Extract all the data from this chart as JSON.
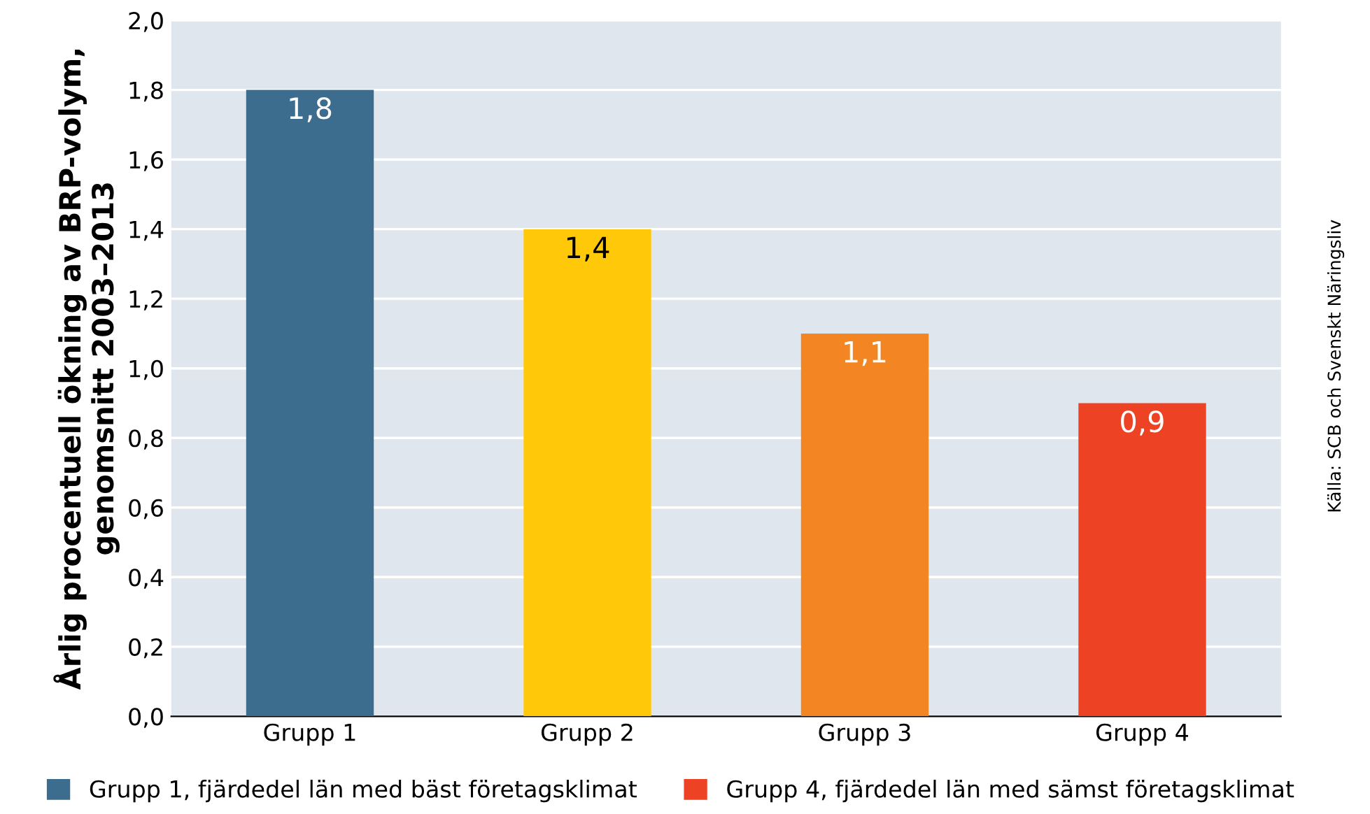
{
  "chart_data": {
    "type": "bar",
    "ylabel": "Årlig procentuell ökning av BRP-volym,\ngenomsnitt 2003–2013",
    "categories": [
      "Grupp 1",
      "Grupp 2",
      "Grupp 3",
      "Grupp 4"
    ],
    "series": [
      {
        "name": "Grupp 1, fjärdedel län med bäst företagsklimat",
        "color": "#3c6d8f",
        "values": [
          1.8,
          null,
          null,
          null
        ],
        "value_labels": [
          "1,8",
          null,
          null,
          null
        ]
      },
      {
        "color": "#ffc90a",
        "values": [
          null,
          1.4,
          null,
          null
        ],
        "value_labels": [
          null,
          "1,4",
          null,
          null
        ]
      },
      {
        "color": "#f38622",
        "values": [
          null,
          null,
          1.1,
          null
        ],
        "value_labels": [
          null,
          null,
          "1,1",
          null
        ]
      },
      {
        "name": "Grupp 4, fjärdedel län med sämst företagsklimat",
        "color": "#ee4224",
        "values": [
          null,
          null,
          null,
          0.9
        ],
        "value_labels": [
          null,
          null,
          null,
          "0,9"
        ]
      }
    ],
    "ylim": [
      0,
      2
    ],
    "yticks": [
      {
        "value": 0,
        "label": "0,0"
      },
      {
        "value": 0.2,
        "label": "0,2"
      },
      {
        "value": 0.4,
        "label": "0,4"
      },
      {
        "value": 0.6,
        "label": "0,6"
      },
      {
        "value": 0.8,
        "label": "0,8"
      },
      {
        "value": 1.0,
        "label": "1,0"
      },
      {
        "value": 1.2,
        "label": "1,2"
      },
      {
        "value": 1.4,
        "label": "1,4"
      },
      {
        "value": 1.6,
        "label": "1,6"
      },
      {
        "value": 1.8,
        "label": "1,8"
      },
      {
        "value": 2.0,
        "label": "2,0"
      }
    ],
    "grid": "y",
    "legend": "bottom",
    "annotations": [
      "Källa: SCB och Svenskt Näringsliv"
    ]
  }
}
